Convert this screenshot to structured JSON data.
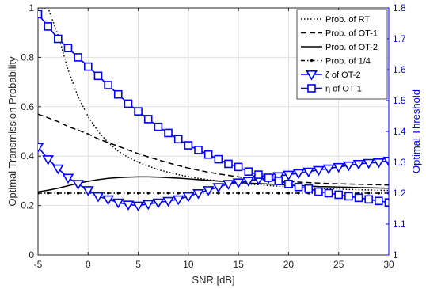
{
  "chart_data": {
    "type": "line",
    "xlabel": "SNR [dB]",
    "ylabel_left": "Optimal Transmission Probability",
    "ylabel_right": "Optimal Threshold",
    "xlim": [
      -5,
      30
    ],
    "ylim_left": [
      0,
      1
    ],
    "ylim_right": [
      1,
      1.8
    ],
    "xticks": [
      "-5",
      "0",
      "5",
      "10",
      "15",
      "20",
      "25",
      "30"
    ],
    "yticks_left": [
      "0",
      "0.2",
      "0.4",
      "0.6",
      "0.8",
      "1"
    ],
    "yticks_right": [
      "1",
      "1.1",
      "1.2",
      "1.3",
      "1.4",
      "1.5",
      "1.6",
      "1.7",
      "1.8"
    ],
    "grid": true,
    "legend_position": "top-right",
    "colors": {
      "black": "#000000",
      "blue": "#0000ff",
      "grid": "#e0e0e0",
      "axis": "#262626"
    },
    "x": [
      -5,
      -4,
      -3,
      -2,
      -1,
      0,
      1,
      2,
      3,
      4,
      5,
      6,
      7,
      8,
      9,
      10,
      11,
      12,
      13,
      14,
      15,
      16,
      17,
      18,
      19,
      20,
      21,
      22,
      23,
      24,
      25,
      26,
      27,
      28,
      29,
      30
    ],
    "series": [
      {
        "name": "Prob. of RT",
        "axis": "left",
        "style": "dotted",
        "color": "#000000",
        "marker": "none",
        "values": [
          1.0,
          1.0,
          0.89,
          0.75,
          0.64,
          0.56,
          0.5,
          0.455,
          0.42,
          0.395,
          0.375,
          0.36,
          0.345,
          0.335,
          0.325,
          0.317,
          0.31,
          0.305,
          0.3,
          0.295,
          0.291,
          0.287,
          0.284,
          0.281,
          0.278,
          0.276,
          0.274,
          0.272,
          0.27,
          0.268,
          0.267,
          0.265,
          0.264,
          0.263,
          0.262,
          0.261
        ]
      },
      {
        "name": "Prob. of OT-1",
        "axis": "left",
        "style": "dashed",
        "color": "#000000",
        "marker": "none",
        "values": [
          0.57,
          0.555,
          0.54,
          0.52,
          0.505,
          0.49,
          0.47,
          0.455,
          0.44,
          0.425,
          0.41,
          0.397,
          0.385,
          0.373,
          0.362,
          0.352,
          0.343,
          0.335,
          0.328,
          0.322,
          0.316,
          0.311,
          0.307,
          0.303,
          0.3,
          0.297,
          0.295,
          0.293,
          0.291,
          0.289,
          0.288,
          0.287,
          0.286,
          0.285,
          0.284,
          0.283
        ]
      },
      {
        "name": "Prob. of OT-2",
        "axis": "left",
        "style": "solid",
        "color": "#000000",
        "marker": "none",
        "values": [
          0.255,
          0.262,
          0.27,
          0.28,
          0.29,
          0.298,
          0.305,
          0.31,
          0.313,
          0.315,
          0.316,
          0.316,
          0.315,
          0.313,
          0.311,
          0.308,
          0.305,
          0.302,
          0.299,
          0.296,
          0.293,
          0.291,
          0.289,
          0.287,
          0.285,
          0.283,
          0.281,
          0.279,
          0.277,
          0.276,
          0.275,
          0.274,
          0.273,
          0.272,
          0.271,
          0.27
        ]
      },
      {
        "name": "Prob. of 1/4",
        "axis": "left",
        "style": "dashdot",
        "color": "#000000",
        "marker": "dot",
        "values": [
          0.25,
          0.25,
          0.25,
          0.25,
          0.25,
          0.25,
          0.25,
          0.25,
          0.25,
          0.25,
          0.25,
          0.25,
          0.25,
          0.25,
          0.25,
          0.25,
          0.25,
          0.25,
          0.25,
          0.25,
          0.25,
          0.25,
          0.25,
          0.25,
          0.25,
          0.25,
          0.25,
          0.25,
          0.25,
          0.25,
          0.25,
          0.25,
          0.25,
          0.25,
          0.25,
          0.25
        ]
      },
      {
        "name": "ζ of OT-2",
        "axis": "right",
        "style": "solid",
        "color": "#0000ff",
        "marker": "triangle-down",
        "values": [
          1.35,
          1.31,
          1.28,
          1.25,
          1.23,
          1.21,
          1.19,
          1.18,
          1.17,
          1.163,
          1.16,
          1.165,
          1.17,
          1.175,
          1.18,
          1.19,
          1.2,
          1.21,
          1.22,
          1.23,
          1.235,
          1.24,
          1.245,
          1.25,
          1.255,
          1.26,
          1.265,
          1.27,
          1.275,
          1.28,
          1.285,
          1.29,
          1.295,
          1.298,
          1.3,
          1.305
        ]
      },
      {
        "name": "η of OT-1",
        "axis": "right",
        "style": "solid",
        "color": "#0000ff",
        "marker": "square",
        "values": [
          1.78,
          1.74,
          1.7,
          1.67,
          1.64,
          1.61,
          1.58,
          1.55,
          1.52,
          1.49,
          1.465,
          1.44,
          1.415,
          1.395,
          1.375,
          1.355,
          1.34,
          1.325,
          1.31,
          1.295,
          1.285,
          1.27,
          1.26,
          1.25,
          1.24,
          1.23,
          1.22,
          1.215,
          1.205,
          1.2,
          1.195,
          1.19,
          1.185,
          1.18,
          1.175,
          1.17
        ]
      }
    ],
    "legend": [
      {
        "label": "Prob. of RT"
      },
      {
        "label": "Prob. of OT-1"
      },
      {
        "label": "Prob. of OT-2"
      },
      {
        "label": "Prob. of 1/4"
      },
      {
        "label": "ζ of OT-2"
      },
      {
        "label": "η of OT-1"
      }
    ]
  }
}
